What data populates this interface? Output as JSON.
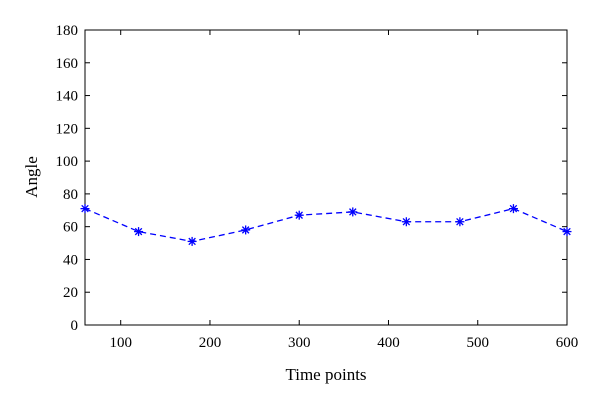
{
  "chart_data": {
    "type": "line",
    "title": "",
    "xlabel": "Time points",
    "ylabel": "Angle",
    "xlim": [
      60,
      600
    ],
    "ylim": [
      0,
      180
    ],
    "xticks": [
      100,
      200,
      300,
      400,
      500,
      600
    ],
    "yticks": [
      0,
      20,
      40,
      60,
      80,
      100,
      120,
      140,
      160,
      180
    ],
    "grid": false,
    "series": [
      {
        "color": "#0000ff",
        "line_style": "dashed",
        "marker": "asterisk",
        "x": [
          60,
          120,
          180,
          240,
          300,
          360,
          420,
          480,
          540,
          600
        ],
        "y": [
          71,
          57,
          51,
          58,
          67,
          69,
          63,
          63,
          71,
          57
        ]
      }
    ]
  }
}
